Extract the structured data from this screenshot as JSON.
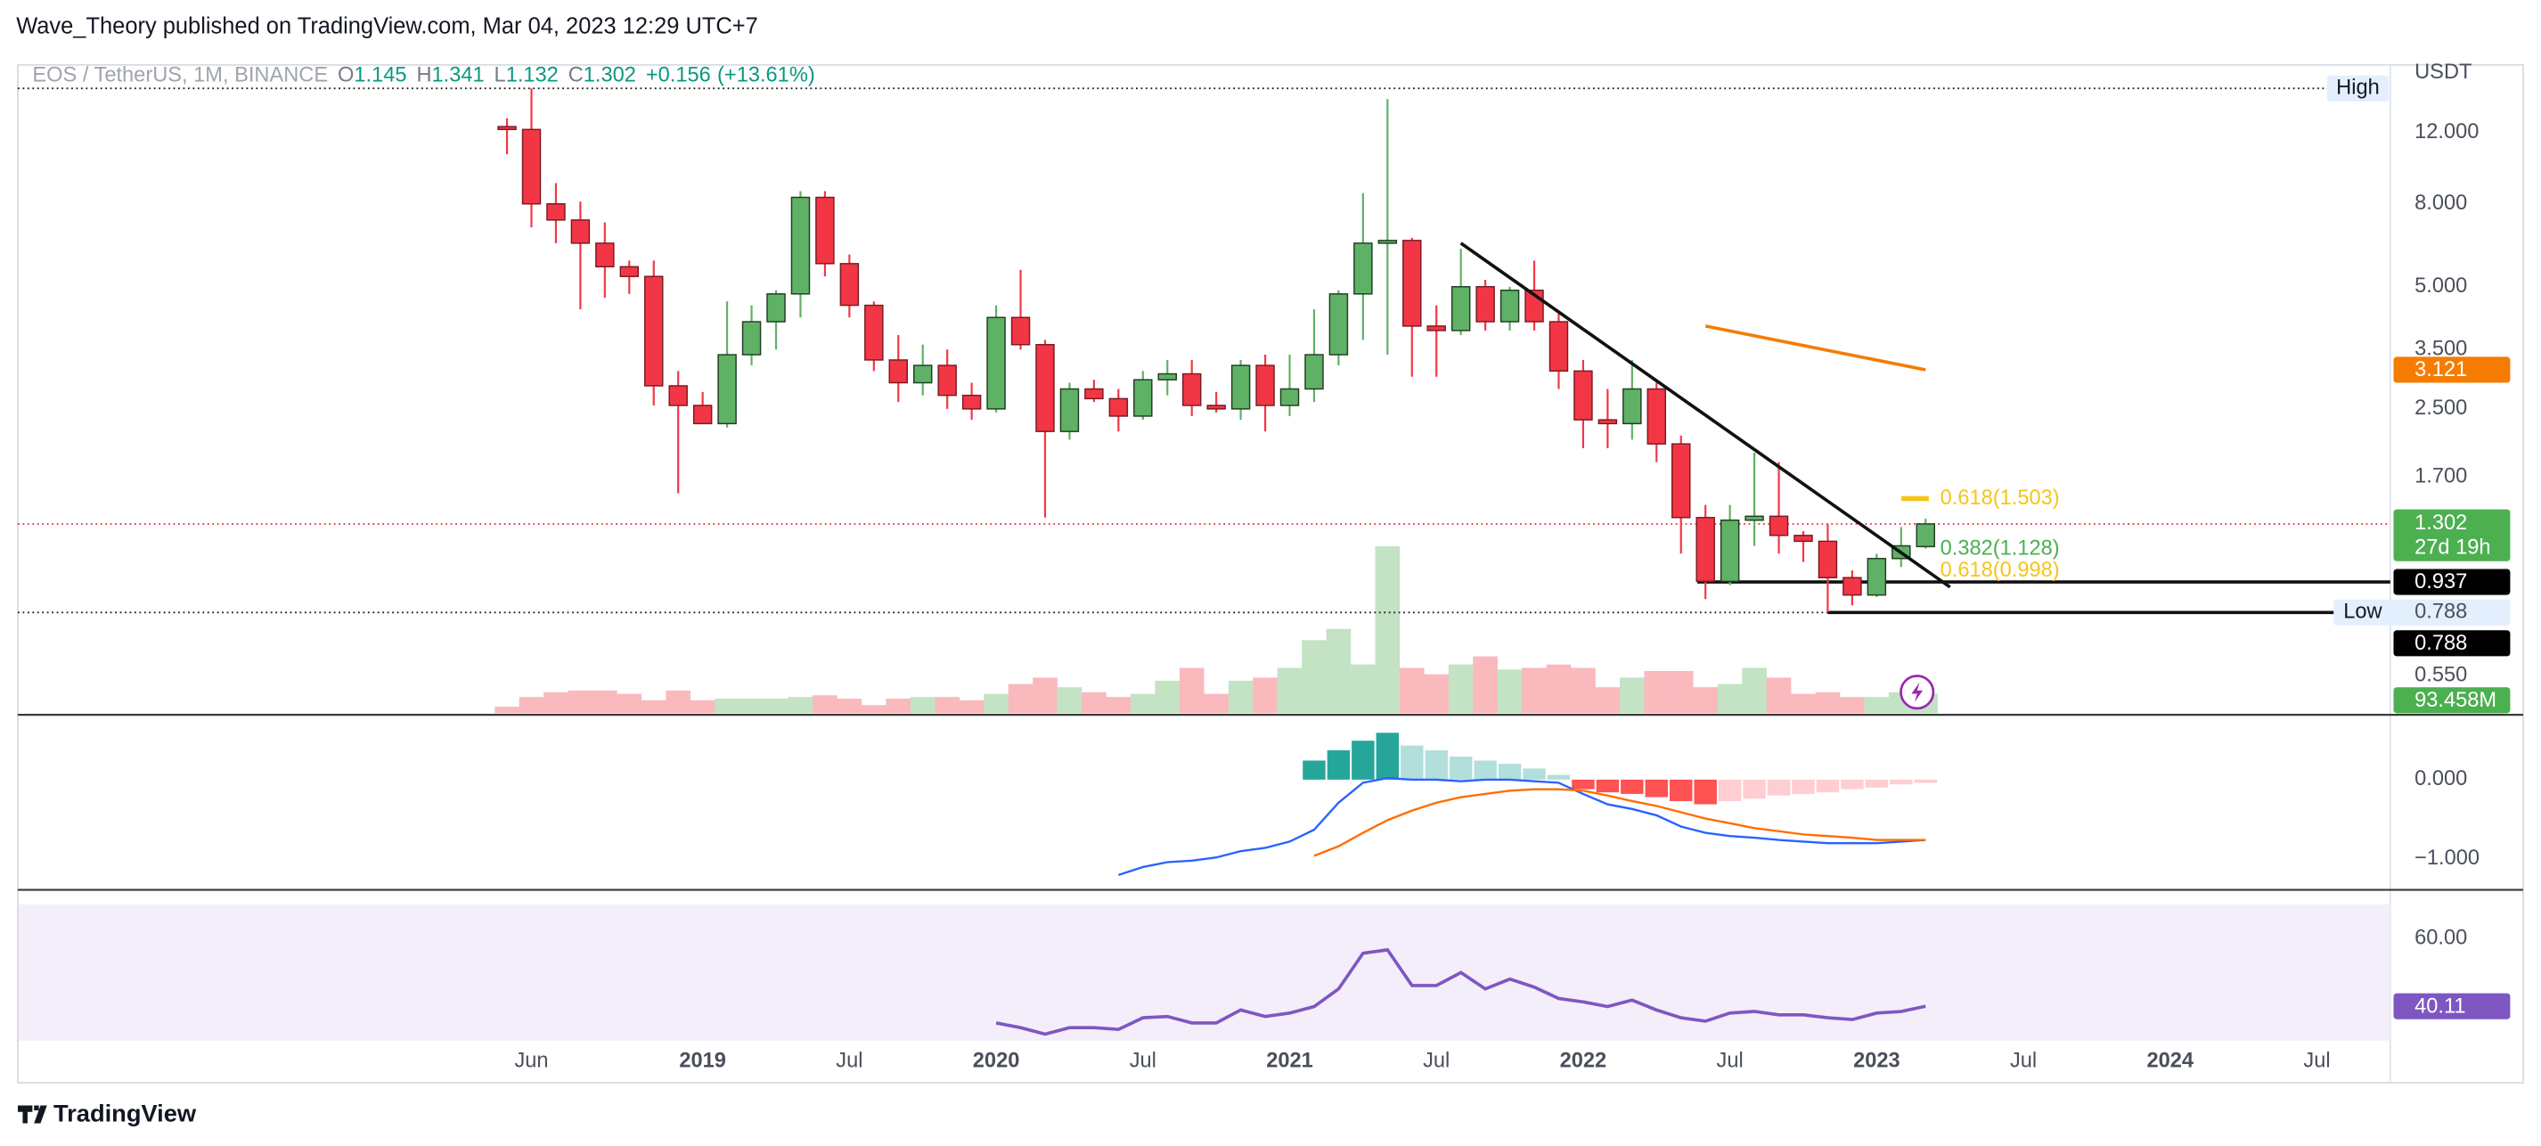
{
  "header": {
    "publisher": "Wave_Theory published on TradingView.com, Mar 04, 2023 12:29 UTC+7"
  },
  "footer": {
    "brand": "TradingView"
  },
  "chart_data": [
    {
      "type": "candlestick",
      "title": "EOS / TetherUS, 1M, BINANCE",
      "currency": "USDT",
      "log": true,
      "legend_keys": [
        "O",
        "H",
        "L",
        "C"
      ],
      "change": {
        "value": 0.156,
        "label": "+0.156"
      },
      "change_pct": {
        "value": 13.61,
        "label": "(+13.61%)"
      },
      "x": [
        "2018-05",
        "2018-06",
        "2018-07",
        "2018-08",
        "2018-09",
        "2018-10",
        "2018-11",
        "2018-12",
        "2019-01",
        "2019-02",
        "2019-03",
        "2019-04",
        "2019-05",
        "2019-06",
        "2019-07",
        "2019-08",
        "2019-09",
        "2019-10",
        "2019-11",
        "2019-12",
        "2020-01",
        "2020-02",
        "2020-03",
        "2020-04",
        "2020-05",
        "2020-06",
        "2020-07",
        "2020-08",
        "2020-09",
        "2020-10",
        "2020-11",
        "2020-12",
        "2021-01",
        "2021-02",
        "2021-03",
        "2021-04",
        "2021-05",
        "2021-06",
        "2021-07",
        "2021-08",
        "2021-09",
        "2021-10",
        "2021-11",
        "2021-12",
        "2022-01",
        "2022-02",
        "2022-03",
        "2022-04",
        "2022-05",
        "2022-06",
        "2022-07",
        "2022-08",
        "2022-09",
        "2022-10",
        "2022-11",
        "2022-12",
        "2023-01",
        "2023-02",
        "2023-03"
      ],
      "open": [
        12.4,
        12.2,
        8.0,
        7.3,
        6.4,
        5.6,
        5.3,
        2.85,
        2.55,
        2.3,
        3.4,
        4.1,
        4.8,
        8.3,
        5.7,
        4.5,
        3.3,
        2.9,
        3.2,
        2.7,
        2.5,
        4.2,
        3.6,
        2.2,
        2.8,
        2.65,
        2.4,
        2.95,
        3.05,
        2.55,
        2.5,
        3.2,
        2.55,
        2.8,
        3.4,
        4.8,
        6.4,
        6.5,
        4.0,
        3.9,
        5.0,
        4.1,
        4.9,
        4.1,
        3.1,
        2.35,
        2.3,
        2.8,
        2.05,
        1.35,
        0.94,
        1.33,
        1.36,
        1.22,
        1.18,
        0.96,
        0.87,
        1.07,
        1.145
      ],
      "high": [
        13.0,
        15.4,
        9.0,
        8.1,
        7.2,
        5.8,
        5.8,
        3.1,
        2.75,
        4.6,
        4.5,
        4.9,
        8.6,
        8.6,
        6.0,
        4.6,
        3.8,
        3.6,
        3.5,
        2.9,
        4.5,
        5.5,
        3.7,
        2.9,
        2.95,
        2.8,
        3.1,
        3.3,
        3.3,
        2.75,
        3.3,
        3.4,
        3.4,
        4.4,
        4.9,
        8.5,
        14.5,
        6.6,
        4.5,
        6.2,
        5.2,
        5.0,
        5.8,
        4.3,
        3.3,
        2.8,
        3.3,
        2.9,
        2.15,
        1.45,
        1.45,
        1.95,
        1.85,
        1.25,
        1.3,
        1.0,
        1.1,
        1.28,
        1.341
      ],
      "low": [
        10.6,
        7.0,
        6.4,
        4.4,
        4.7,
        4.8,
        2.55,
        1.55,
        2.3,
        2.25,
        3.2,
        3.5,
        4.2,
        5.3,
        4.2,
        3.1,
        2.6,
        2.7,
        2.5,
        2.35,
        2.45,
        3.5,
        1.35,
        2.1,
        2.6,
        2.2,
        2.35,
        2.7,
        2.4,
        2.45,
        2.35,
        2.2,
        2.4,
        2.6,
        3.2,
        3.7,
        3.4,
        3.0,
        3.0,
        3.8,
        3.9,
        3.9,
        3.9,
        2.8,
        2.0,
        2.0,
        2.1,
        1.85,
        1.1,
        0.85,
        0.92,
        1.15,
        1.1,
        1.05,
        0.788,
        0.82,
        0.86,
        1.02,
        1.132
      ],
      "close": [
        12.2,
        8.0,
        7.3,
        6.4,
        5.6,
        5.3,
        2.85,
        2.55,
        2.3,
        3.4,
        4.1,
        4.8,
        8.3,
        5.7,
        4.5,
        3.3,
        2.9,
        3.2,
        2.7,
        2.5,
        4.2,
        3.6,
        2.2,
        2.8,
        2.65,
        2.4,
        2.95,
        3.05,
        2.55,
        2.5,
        3.2,
        2.55,
        2.8,
        3.4,
        4.8,
        6.4,
        6.5,
        4.0,
        3.9,
        5.0,
        4.1,
        4.9,
        4.1,
        3.1,
        2.35,
        2.3,
        2.8,
        2.05,
        1.35,
        0.94,
        1.33,
        1.36,
        1.22,
        1.18,
        0.96,
        0.87,
        1.07,
        1.15,
        1.302
      ],
      "last_price_countdown": "27d 19h",
      "colors": {
        "up": "#5fb165",
        "up_border": "#1f3d23",
        "down": "#f23645",
        "down_border": "#7a1a22",
        "last": "#4caf50"
      },
      "ylim": [
        0.445,
        17.6
      ],
      "yticks": [
        {
          "value": 12,
          "label": "12.000"
        },
        {
          "value": 8,
          "label": "8.000"
        },
        {
          "value": 5,
          "label": "5.000"
        },
        {
          "value": 3.5,
          "label": "3.500"
        },
        {
          "value": 2.5,
          "label": "2.500"
        },
        {
          "value": 1.7,
          "label": "1.700"
        },
        {
          "value": 0.55,
          "label": "0.550"
        }
      ],
      "xlim": [
        "2016-09",
        "2024-10"
      ],
      "xticks": [
        {
          "value": "2018-06",
          "label": "Jun"
        },
        {
          "value": "2019-01",
          "label": "2019"
        },
        {
          "value": "2019-07",
          "label": "Jul"
        },
        {
          "value": "2020-01",
          "label": "2020"
        },
        {
          "value": "2020-07",
          "label": "Jul"
        },
        {
          "value": "2021-01",
          "label": "2021"
        },
        {
          "value": "2021-07",
          "label": "Jul"
        },
        {
          "value": "2022-01",
          "label": "2022"
        },
        {
          "value": "2022-07",
          "label": "Jul"
        },
        {
          "value": "2023-01",
          "label": "2023"
        },
        {
          "value": "2023-07",
          "label": "Jul"
        },
        {
          "value": "2024-01",
          "label": "2024"
        },
        {
          "value": "2024-07",
          "label": "Jul"
        }
      ],
      "ma": {
        "x": [
          "2022-06",
          "2023-03"
        ],
        "values": [
          4.0,
          3.121
        ],
        "color": "#f57c00"
      },
      "trendline": {
        "x": [
          "2021-08",
          "2023-04"
        ],
        "values": [
          6.4,
          0.91
        ]
      },
      "support": {
        "x": "2022-06",
        "value": 0.937
      },
      "high_marker": {
        "label": "High",
        "value": 15.4
      },
      "low_marker": {
        "label": "Low",
        "value": 0.788,
        "x": "2022-11"
      },
      "fib_levels": [
        {
          "value": 1.503,
          "label": "0.618(1.503)",
          "color": "#f5c518"
        },
        {
          "value": 1.128,
          "label": "0.382(1.128)",
          "color": "#4caf50"
        },
        {
          "value": 0.998,
          "label": "0.618(0.998)",
          "color": "#f5c518"
        }
      ]
    },
    {
      "type": "volume",
      "x": [
        "2018-05",
        "2018-06",
        "2018-07",
        "2018-08",
        "2018-09",
        "2018-10",
        "2018-11",
        "2018-12",
        "2019-01",
        "2019-02",
        "2019-03",
        "2019-04",
        "2019-05",
        "2019-06",
        "2019-07",
        "2019-08",
        "2019-09",
        "2019-10",
        "2019-11",
        "2019-12",
        "2020-01",
        "2020-02",
        "2020-03",
        "2020-04",
        "2020-05",
        "2020-06",
        "2020-07",
        "2020-08",
        "2020-09",
        "2020-10",
        "2020-11",
        "2020-12",
        "2021-01",
        "2021-02",
        "2021-03",
        "2021-04",
        "2021-05",
        "2021-06",
        "2021-07",
        "2021-08",
        "2021-09",
        "2021-10",
        "2021-11",
        "2021-12",
        "2022-01",
        "2022-02",
        "2022-03",
        "2022-04",
        "2022-05",
        "2022-06",
        "2022-07",
        "2022-08",
        "2022-09",
        "2022-10",
        "2022-11",
        "2022-12",
        "2023-01",
        "2023-02",
        "2023-03"
      ],
      "values": [
        31,
        78,
        101,
        109,
        109,
        93,
        62,
        109,
        62,
        70,
        70,
        70,
        78,
        86,
        70,
        39,
        70,
        78,
        78,
        62,
        93,
        140,
        171,
        125,
        101,
        78,
        93,
        156,
        218,
        93,
        156,
        171,
        218,
        351,
        405,
        234,
        802,
        218,
        187,
        234,
        273,
        210,
        218,
        234,
        218,
        125,
        171,
        203,
        203,
        125,
        140,
        218,
        171,
        93,
        101,
        78,
        78,
        101,
        93.458
      ],
      "value_labels": [
        null,
        null,
        null,
        null,
        null,
        null,
        null,
        null,
        null,
        null,
        null,
        null,
        null,
        null,
        null,
        null,
        null,
        null,
        null,
        null,
        null,
        null,
        null,
        null,
        null,
        null,
        null,
        null,
        null,
        null,
        null,
        null,
        null,
        null,
        null,
        null,
        null,
        null,
        null,
        null,
        null,
        null,
        null,
        null,
        null,
        null,
        null,
        null,
        null,
        null,
        null,
        null,
        null,
        null,
        null,
        null,
        null,
        null,
        "93.458M"
      ],
      "colors": {
        "up": "#c3e3c4",
        "down": "#f9b9bd",
        "last": "#4caf50"
      },
      "ylim": [
        0,
        3116
      ]
    },
    {
      "type": "macd",
      "x": [
        "2020-06",
        "2020-07",
        "2020-08",
        "2020-09",
        "2020-10",
        "2020-11",
        "2020-12",
        "2021-01",
        "2021-02",
        "2021-03",
        "2021-04",
        "2021-05",
        "2021-06",
        "2021-07",
        "2021-08",
        "2021-09",
        "2021-10",
        "2021-11",
        "2021-12",
        "2022-01",
        "2022-02",
        "2022-03",
        "2022-04",
        "2022-05",
        "2022-06",
        "2022-07",
        "2022-08",
        "2022-09",
        "2022-10",
        "2022-11",
        "2022-12",
        "2023-01",
        "2023-02",
        "2023-03"
      ],
      "histogram": [
        null,
        null,
        null,
        null,
        null,
        null,
        null,
        null,
        0.24,
        0.37,
        0.49,
        0.59,
        0.43,
        0.37,
        0.29,
        0.24,
        0.2,
        0.14,
        0.06,
        -0.12,
        -0.16,
        -0.18,
        -0.22,
        -0.27,
        -0.31,
        -0.27,
        -0.24,
        -0.2,
        -0.18,
        -0.16,
        -0.12,
        -0.1,
        -0.06,
        -0.04
      ],
      "macd": [
        -1.2,
        -1.1,
        -1.04,
        -1.02,
        -0.98,
        -0.9,
        -0.86,
        -0.78,
        -0.63,
        -0.29,
        -0.04,
        0.02,
        0,
        0,
        -0.02,
        0,
        0,
        -0.02,
        -0.04,
        -0.18,
        -0.31,
        -0.37,
        -0.45,
        -0.59,
        -0.67,
        -0.71,
        -0.73,
        -0.76,
        -0.78,
        -0.8,
        -0.8,
        -0.8,
        -0.78,
        -0.76
      ],
      "signal": [
        null,
        null,
        null,
        null,
        null,
        null,
        null,
        null,
        -0.96,
        -0.84,
        -0.67,
        -0.51,
        -0.39,
        -0.29,
        -0.22,
        -0.18,
        -0.14,
        -0.12,
        -0.12,
        -0.14,
        -0.2,
        -0.27,
        -0.33,
        -0.41,
        -0.49,
        -0.55,
        -0.61,
        -0.65,
        -0.69,
        -0.71,
        -0.73,
        -0.76,
        -0.76,
        -0.76
      ],
      "colors": {
        "macd": "#2962ff",
        "signal": "#ff6d00",
        "pos_rising": "#26a69a",
        "pos_falling": "#b2dfdb",
        "neg_falling": "#ff5252",
        "neg_rising": "#ffcdd2"
      },
      "ylim": [
        -1.388,
        0.816
      ],
      "yticks": [
        {
          "value": 0,
          "label": "0.000"
        },
        {
          "value": -1,
          "label": "−1.000"
        }
      ]
    },
    {
      "type": "line",
      "x": [
        "2020-01",
        "2020-02",
        "2020-03",
        "2020-04",
        "2020-05",
        "2020-06",
        "2020-07",
        "2020-08",
        "2020-09",
        "2020-10",
        "2020-11",
        "2020-12",
        "2021-01",
        "2021-02",
        "2021-03",
        "2021-04",
        "2021-05",
        "2021-06",
        "2021-07",
        "2021-08",
        "2021-09",
        "2021-10",
        "2021-11",
        "2021-12",
        "2022-01",
        "2022-02",
        "2022-03",
        "2022-04",
        "2022-05",
        "2022-06",
        "2022-07",
        "2022-08",
        "2022-09",
        "2022-10",
        "2022-11",
        "2022-12",
        "2023-01",
        "2023-02",
        "2023-03"
      ],
      "values": [
        35.2,
        33.8,
        31.9,
        33.8,
        33.8,
        33.3,
        36.7,
        37.1,
        35.2,
        35.2,
        39.0,
        37.1,
        38.1,
        40.0,
        45.2,
        55.7,
        56.7,
        46.2,
        46.2,
        50.0,
        45.2,
        48.1,
        45.7,
        42.4,
        41.4,
        40.0,
        41.9,
        39.0,
        36.7,
        35.7,
        38.1,
        38.6,
        37.6,
        37.6,
        36.7,
        36.2,
        38.1,
        38.6,
        40.11
      ],
      "color": "#7e57c2",
      "band": [
        30,
        70
      ],
      "band_color": "#f3eef9",
      "ylim": [
        18.1,
        74.3
      ],
      "yticks": [
        {
          "value": 60,
          "label": "60.00"
        }
      ]
    }
  ]
}
